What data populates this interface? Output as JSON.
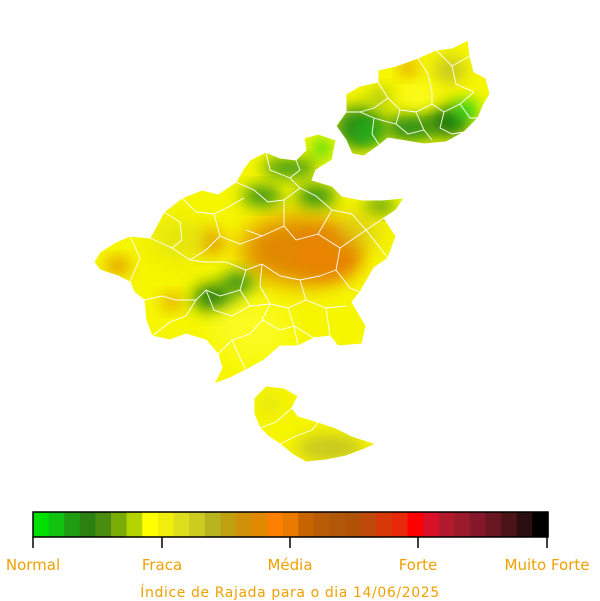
{
  "legend": {
    "ticks": [
      "Normal",
      "Fraca",
      "Média",
      "Forte",
      "Muito Forte"
    ],
    "scale_colors": [
      "#00e000",
      "#11c311",
      "#1f9c12",
      "#2c8012",
      "#4a8c10",
      "#7aac08",
      "#b4d400",
      "#ffff00",
      "#f2ee0c",
      "#dede1c",
      "#cccc20",
      "#b8b420",
      "#c0a010",
      "#d09008",
      "#e08800",
      "#ff8000",
      "#e87a00",
      "#c86400",
      "#b85c08",
      "#b05808",
      "#b05206",
      "#c04808",
      "#d83808",
      "#e82808",
      "#ff0000",
      "#d81028",
      "#b01a2c",
      "#9a1a2c",
      "#84182a",
      "#6a1620",
      "#4a1418",
      "#2a0e10",
      "#000000"
    ],
    "label_color": "#f0a000"
  },
  "caption": "Índice de Rajada para o dia 14/06/2025",
  "map": {
    "region_colors": {
      "base": "#f6f600",
      "light": "#fbfb20",
      "green": "#2f8f14",
      "dark_green": "#1f7a10",
      "bright_green": "#12d41e",
      "orange": "#e08800",
      "olive": "#c8c820",
      "border": "#ffffff"
    }
  }
}
